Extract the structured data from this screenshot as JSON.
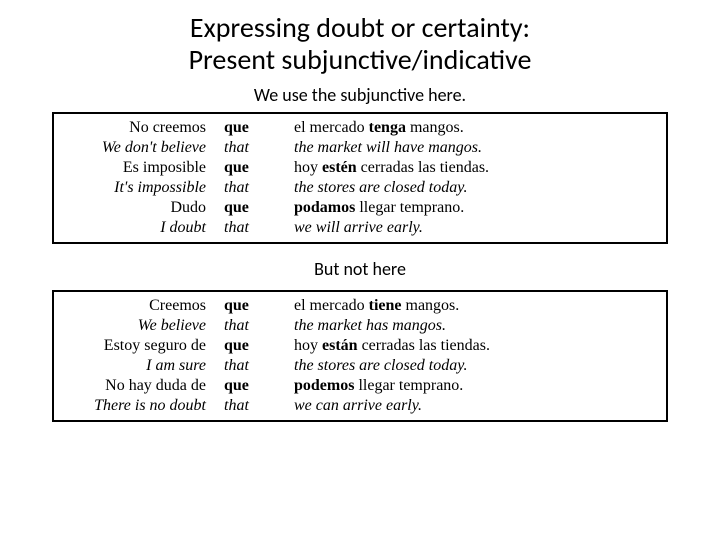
{
  "title_line1": "Expressing doubt or certainty:",
  "title_line2": "Present subjunctive/indicative",
  "caption1": "We use the subjunctive here.",
  "caption2": "But not here",
  "t1": {
    "r0": {
      "c1": "No creemos",
      "c2": "que",
      "c3a": "el mercado ",
      "c3b": "tenga",
      "c3c": " mangos."
    },
    "r1": {
      "c1": "We don't believe",
      "c2": "that",
      "c3": "the market will have mangos."
    },
    "r2": {
      "c1": "Es imposible",
      "c2": "que",
      "c3a": "hoy ",
      "c3b": "estén",
      "c3c": " cerradas las tiendas."
    },
    "r3": {
      "c1": "It's impossible",
      "c2": "that",
      "c3": "the stores are closed today."
    },
    "r4": {
      "c1": "Dudo",
      "c2": "que",
      "c3a": "",
      "c3b": "podamos",
      "c3c": " llegar temprano."
    },
    "r5": {
      "c1": "I doubt",
      "c2": "that",
      "c3": "we will arrive early."
    }
  },
  "t2": {
    "r0": {
      "c1": "Creemos",
      "c2": "que",
      "c3a": "el mercado ",
      "c3b": "tiene",
      "c3c": " mangos."
    },
    "r1": {
      "c1": "We believe",
      "c2": "that",
      "c3": "the market has mangos."
    },
    "r2": {
      "c1": "Estoy seguro de",
      "c2": "que",
      "c3a": "hoy ",
      "c3b": "están",
      "c3c": " cerradas las tiendas."
    },
    "r3": {
      "c1": "I am sure",
      "c2": "that",
      "c3": "the stores are closed today."
    },
    "r4": {
      "c1": "No hay duda de",
      "c2": "que",
      "c3a": "",
      "c3b": "podemos",
      "c3c": " llegar temprano."
    },
    "r5": {
      "c1": "There is no doubt",
      "c2": "that",
      "c3": "we can arrive early."
    }
  }
}
